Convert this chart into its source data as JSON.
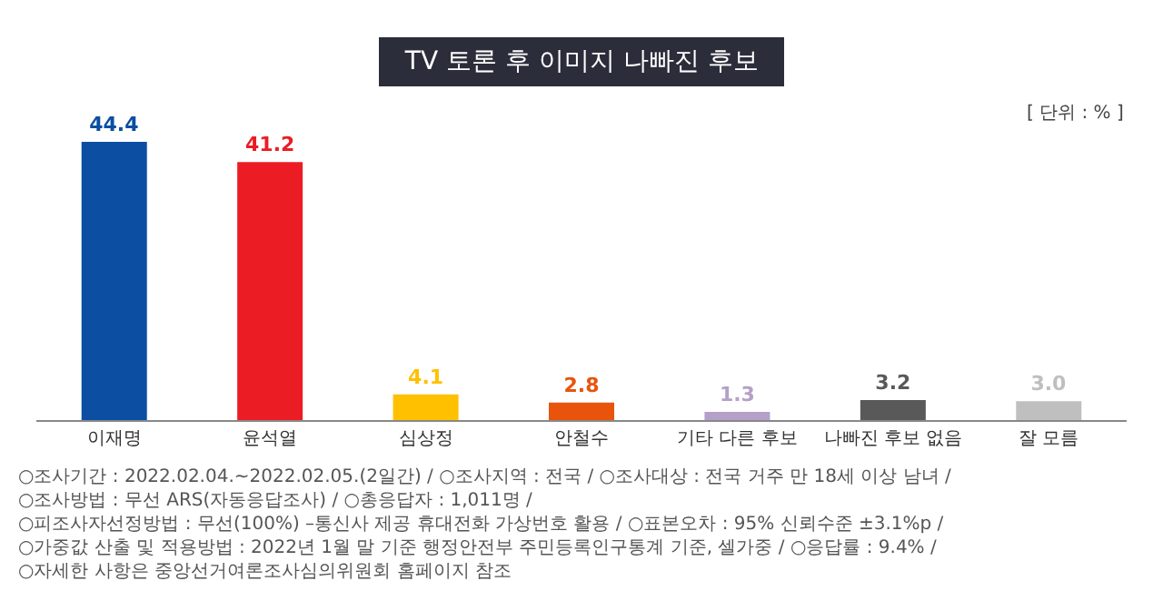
{
  "chart_data": {
    "type": "bar",
    "title": "TV 토론 후 이미지 나빠진 후보",
    "categories": [
      "이재명",
      "윤석열",
      "심상정",
      "안철수",
      "기타 다른 후보",
      "나빠진 후보 없음",
      "잘 모름"
    ],
    "values": [
      44.4,
      41.2,
      4.1,
      2.8,
      1.3,
      3.2,
      3.0
    ],
    "colors": [
      "#0b4ea2",
      "#ec1c24",
      "#ffc000",
      "#e8540c",
      "#b4a0c8",
      "#595959",
      "#bfbfbf"
    ],
    "value_labels": [
      "44.4",
      "41.2",
      "4.1",
      "2.8",
      "1.3",
      "3.2",
      "3.0"
    ],
    "annotations": [
      "[ 단위 : % ]",
      "○조사기간 : 2022.02.04.~2022.02.05.(2일간) /",
      "○조사지역 : 전국 /",
      "○조사대상 : 전국 거주 만 18세 이상 남녀 /",
      "○조사방법 : 무선 ARS(자동응답조사) /",
      "○총응답자 : 1,011명 /",
      "○피조사자선정방법 : 무선(100%) –통신사 제공 휴대전화 가상번호 활용 /",
      "○표본오차 : 95% 신뢰수준 ±3.1%p /",
      "○가중값 산출 및 적용방법 : 2022년 1월 말 기준 행정안전부 주민등록인구통계 기준, 셀가중 /",
      "○응답률 : 9.4% /",
      "○자세한 사항은 중앙선거여론조사심의위원회 홈페이지 참조"
    ]
  }
}
